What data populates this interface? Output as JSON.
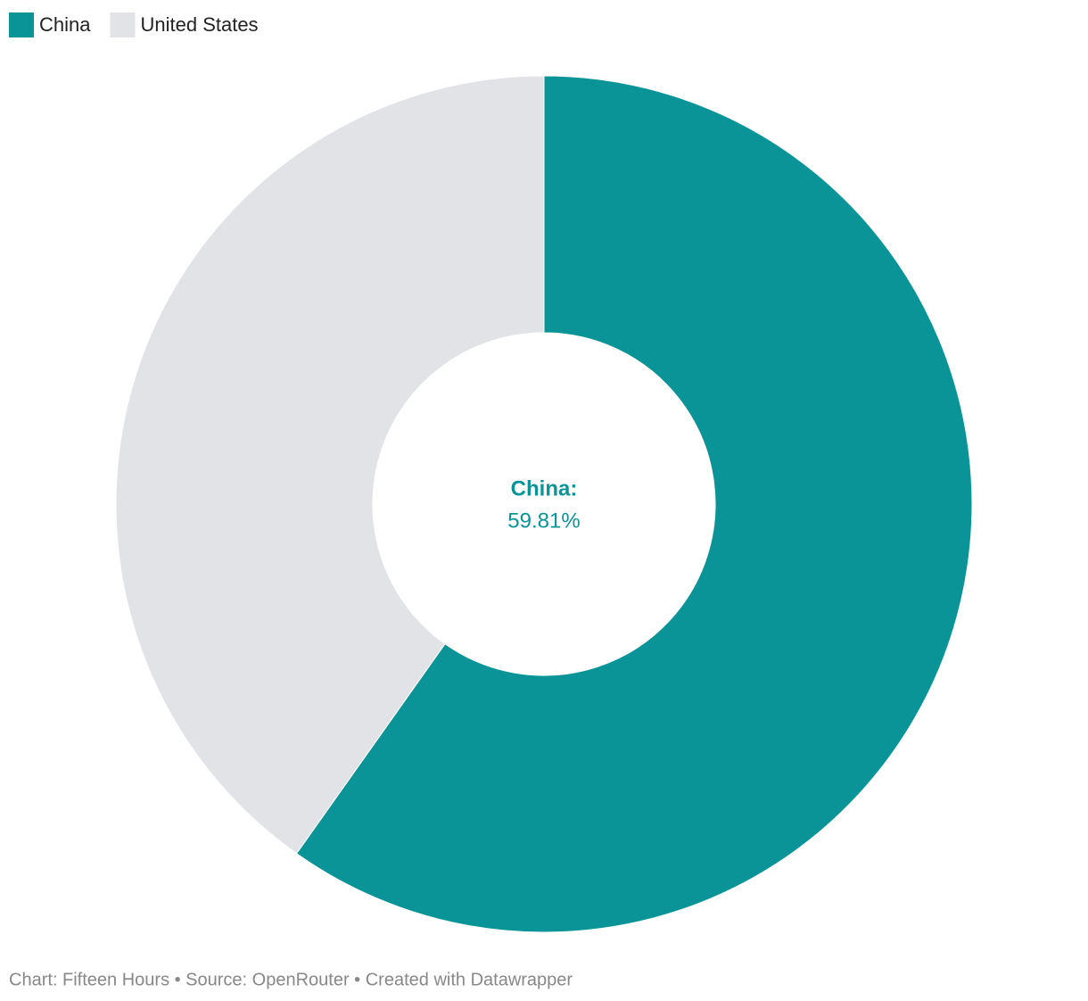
{
  "chart_data": {
    "type": "donut",
    "categories": [
      "China",
      "United States"
    ],
    "values": [
      59.81,
      40.19
    ],
    "colors": [
      "#0b9497",
      "#e2e3e7"
    ],
    "value_labels": [
      "59.81%",
      null
    ],
    "center_label": "China:",
    "source": "Chart: Fifteen Hours • Source: OpenRouter • Created with Datawrapper"
  }
}
